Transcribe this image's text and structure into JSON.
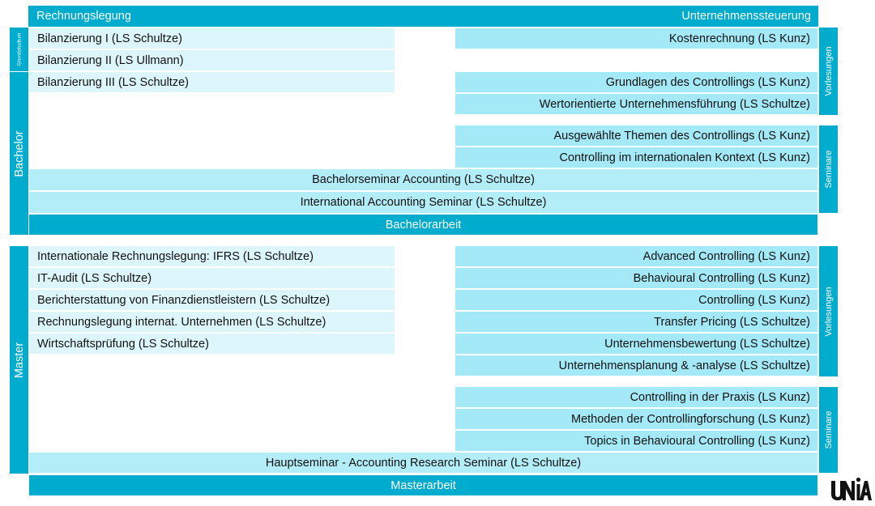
{
  "header": {
    "left": "Rechnungslegung",
    "right": "Unternehmenssteuerung"
  },
  "side_labels": {
    "grundstudium": "Grundstudium",
    "bachelor": "Bachelor",
    "master": "Master",
    "vorlesungen_top": "Vorlesungen",
    "seminare_top": "Seminare",
    "vorlesungen_bottom": "Vorlesungen",
    "seminare_bottom": "Seminare"
  },
  "bachelor": {
    "left": [
      "Bilanzierung I (LS Schultze)",
      "Bilanzierung II (LS Ullmann)",
      "Bilanzierung III (LS Schultze)"
    ],
    "right_lectures": [
      "Kostenrechnung (LS Kunz)",
      "Grundlagen des Controllings (LS Kunz)",
      "Wertorientierte Unternehmensführung (LS Schultze)"
    ],
    "right_seminars": [
      "Ausgewählte Themen des Controllings (LS Kunz)",
      "Controlling im internationalen Kontext (LS Kunz)"
    ],
    "wide": [
      "Bachelorseminar Accounting (LS Schultze)",
      "International Accounting Seminar (LS Schultze)"
    ],
    "thesis": "Bachelorarbeit"
  },
  "master": {
    "left": [
      "Internationale Rechnungslegung: IFRS (LS Schultze)",
      "IT-Audit (LS Schultze)",
      "Berichterstattung von Finanzdienstleistern (LS Schultze)",
      "Rechnungslegung internat. Unternehmen (LS Schultze)",
      "Wirtschaftsprüfung (LS Schultze)"
    ],
    "right_lectures": [
      "Advanced Controlling (LS Kunz)",
      "Behavioural Controlling (LS Kunz)",
      "Controlling (LS Kunz)",
      "Transfer Pricing (LS Schultze)",
      "Unternehmensbewertung (LS Schultze)",
      "Unternehmensplanung & -analyse (LS Schultze)"
    ],
    "right_seminars": [
      "Controlling in der Praxis (LS Kunz)",
      "Methoden der Controllingforschung (LS Kunz)",
      "Topics in Behavioural Controlling (LS Kunz)"
    ],
    "wide": [
      "Hauptseminar - Accounting Research Seminar (LS Schultze)"
    ],
    "thesis": "Masterarbeit"
  },
  "logo_text": "UNIA",
  "colors": {
    "dark": "#00acce",
    "light_left": "#ddf6fb",
    "light_right": "#a3e9f7",
    "wide": "#b3edf8"
  }
}
